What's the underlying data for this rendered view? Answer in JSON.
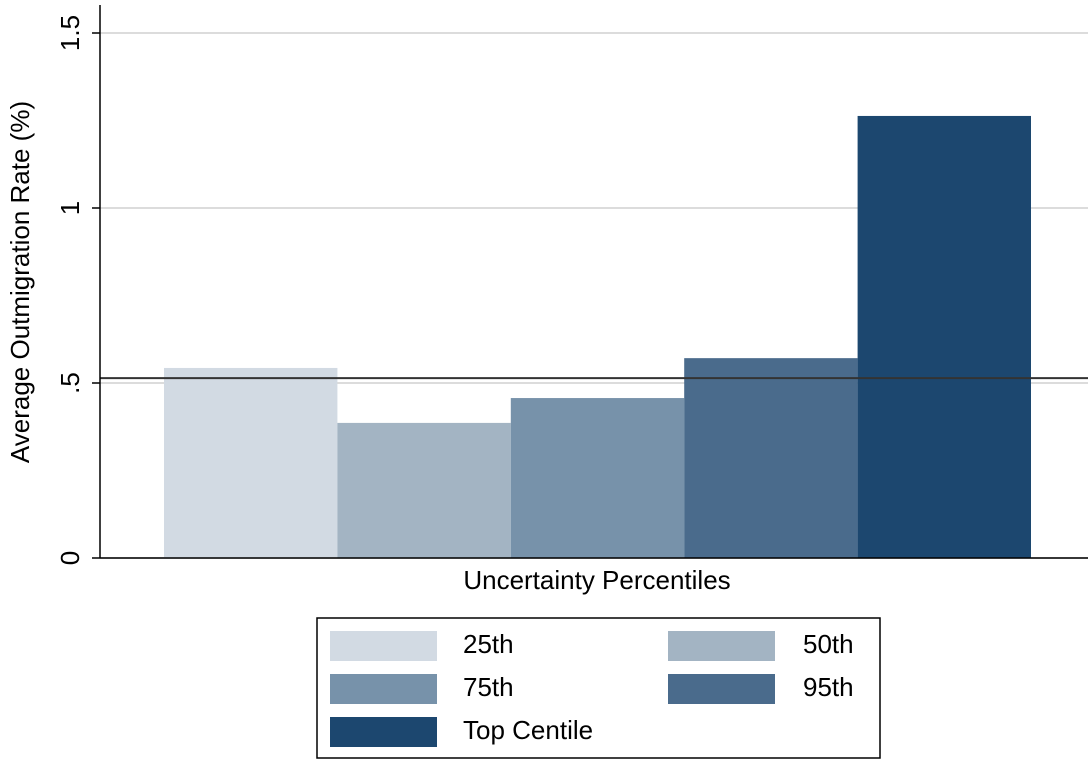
{
  "chart_data": {
    "type": "bar",
    "y_label": "Average Outmigration Rate (%)",
    "x_label": "Uncertainty Percentiles",
    "series": [
      {
        "name": "25th",
        "color": "#d2dae3",
        "values": [
          0.543
        ]
      },
      {
        "name": "50th",
        "color": "#a3b4c3",
        "values": [
          0.386
        ]
      },
      {
        "name": "75th",
        "color": "#7792aa",
        "values": [
          0.457
        ]
      },
      {
        "name": "95th",
        "color": "#4a6b8c",
        "values": [
          0.571
        ]
      },
      {
        "name": "Top Centile",
        "color": "#1c476f",
        "values": [
          1.263
        ]
      }
    ],
    "reference_line": 0.514,
    "ylim": [
      0,
      1.58
    ],
    "yticks": [
      0,
      {
        "value": 0.5,
        "label": ".5"
      },
      1,
      1.5
    ],
    "grid": true,
    "legend": "bottom"
  }
}
